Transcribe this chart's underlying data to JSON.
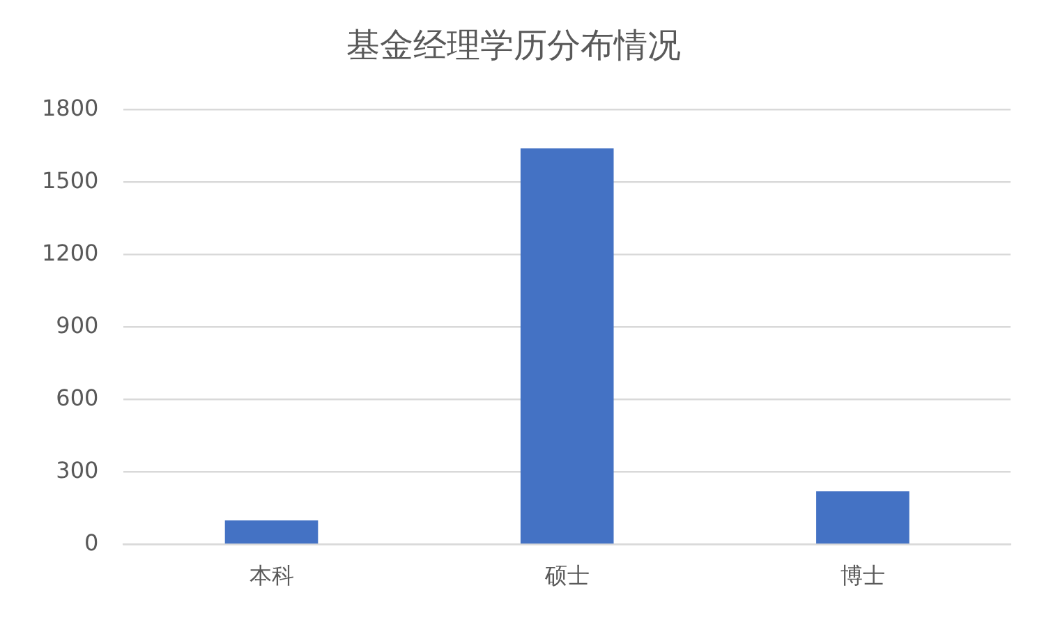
{
  "chart_data": {
    "type": "bar",
    "title": "基金经理学历分布情况",
    "categories": [
      "本科",
      "硕士",
      "博士"
    ],
    "values": [
      100,
      1640,
      220
    ],
    "color": "#4472c4",
    "ylim": [
      0,
      1800
    ],
    "yticks": [
      0,
      300,
      600,
      900,
      1200,
      1500,
      1800
    ],
    "grid": "y",
    "legend": false
  }
}
